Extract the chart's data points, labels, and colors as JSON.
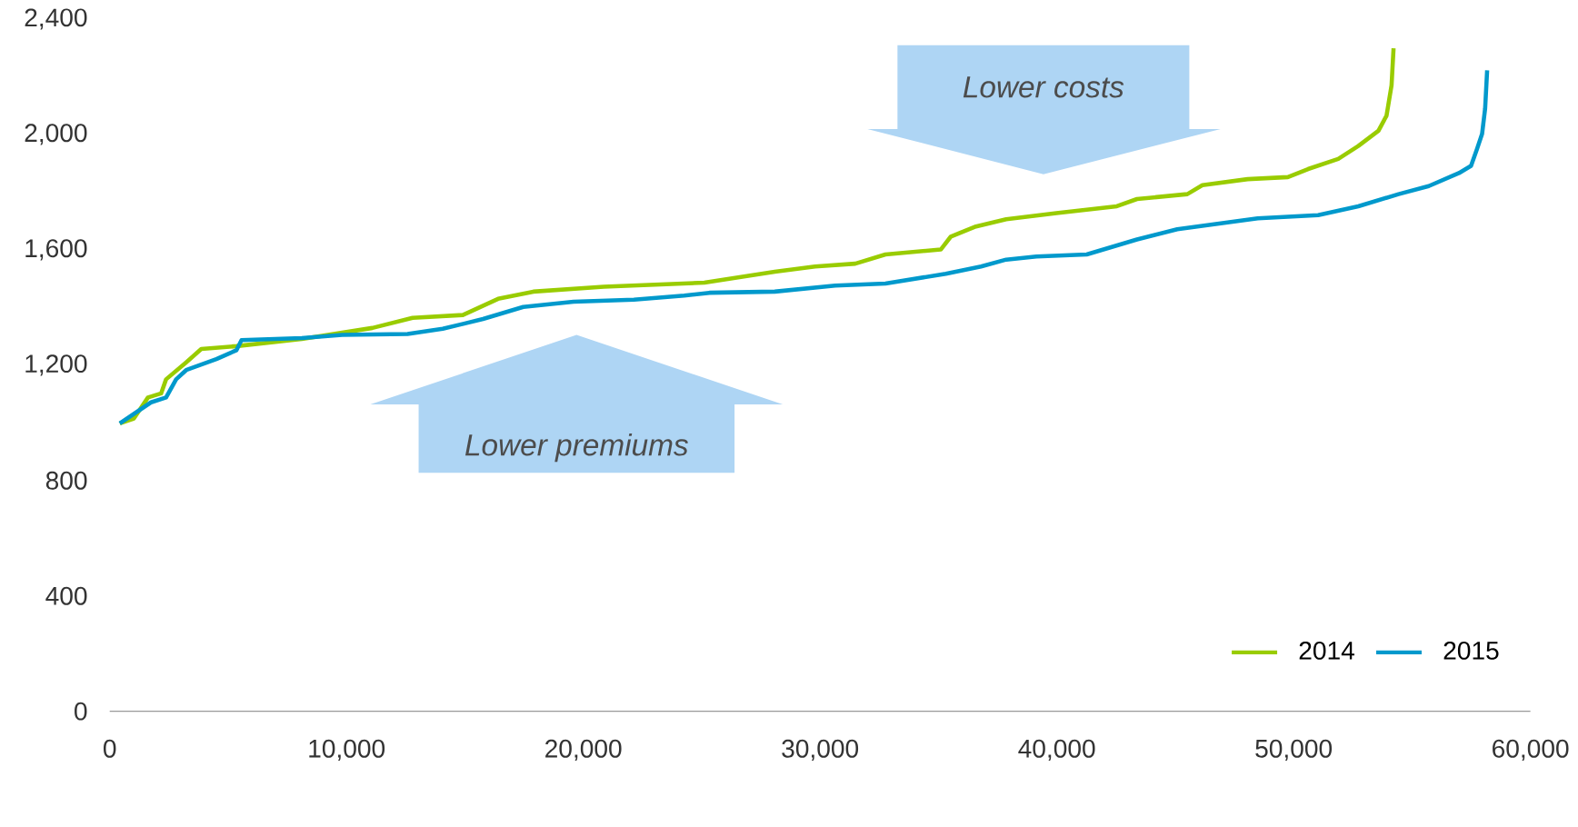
{
  "chart_data": {
    "type": "line",
    "xlim": [
      0,
      60000
    ],
    "ylim": [
      0,
      2400
    ],
    "xticks": [
      0,
      {
        "value": 10000,
        "label": "10,000"
      },
      {
        "value": 20000,
        "label": "20,000"
      },
      {
        "value": 30000,
        "label": "30,000"
      },
      {
        "value": 40000,
        "label": "40,000"
      },
      {
        "value": 50000,
        "label": "50,000"
      },
      {
        "value": 60000,
        "label": "60,000"
      }
    ],
    "yticks": [
      0,
      400,
      800,
      {
        "value": 1200,
        "label": "1,200"
      },
      {
        "value": 1600,
        "label": "1,600"
      },
      {
        "value": 2000,
        "label": "2,000"
      },
      {
        "value": 2400,
        "label": "2,400"
      }
    ],
    "legend": "bottom right",
    "grid": false,
    "marker": "none",
    "line_style": "solid",
    "annotations": [
      "Lower costs",
      "Lower premiums"
    ],
    "series": [
      {
        "name": "2014",
        "color": "#99cc00",
        "x": [
          425,
          1020,
          1615,
          2170,
          2380,
          3230,
          3867,
          5354,
          8116,
          11091,
          12791,
          14916,
          16402,
          17890,
          20864,
          25113,
          28088,
          29788,
          31487,
          32762,
          35099,
          35524,
          36586,
          37861,
          39985,
          42535,
          43385,
          45510,
          46147,
          48059,
          49759,
          50609,
          51884,
          52733,
          53583,
          53923,
          54136,
          54221
        ],
        "values": [
          998,
          1015,
          1088,
          1102,
          1151,
          1210,
          1256,
          1266,
          1291,
          1329,
          1364,
          1374,
          1430,
          1455,
          1472,
          1486,
          1524,
          1542,
          1552,
          1584,
          1601,
          1646,
          1681,
          1706,
          1727,
          1751,
          1776,
          1793,
          1824,
          1845,
          1852,
          1880,
          1915,
          1960,
          2013,
          2065,
          2170,
          2299
        ]
      },
      {
        "name": "2015",
        "color": "#0099cc",
        "x": [
          425,
          1742,
          2380,
          2805,
          3230,
          4505,
          5354,
          5567,
          8116,
          9816,
          12578,
          14065,
          15765,
          17464,
          19589,
          22139,
          24264,
          25326,
          28088,
          30638,
          32762,
          35312,
          36799,
          37861,
          39136,
          41261,
          43385,
          45085,
          48484,
          51034,
          52733,
          54433,
          55708,
          56983,
          57493,
          57748,
          57960,
          58088,
          58173
        ],
        "values": [
          998,
          1071,
          1088,
          1151,
          1183,
          1221,
          1252,
          1287,
          1294,
          1305,
          1308,
          1326,
          1360,
          1402,
          1420,
          1427,
          1441,
          1451,
          1455,
          1476,
          1483,
          1517,
          1542,
          1566,
          1577,
          1584,
          1636,
          1671,
          1709,
          1720,
          1751,
          1793,
          1821,
          1866,
          1891,
          1950,
          2002,
          2090,
          2222
        ]
      }
    ]
  }
}
